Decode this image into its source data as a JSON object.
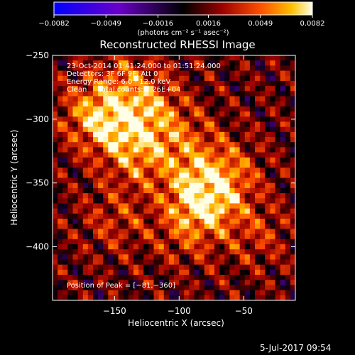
{
  "chart_data": {
    "type": "heatmap",
    "title": "Reconstructed RHESSI Image",
    "xlabel": "Heliocentric X (arcsec)",
    "ylabel": "Heliocentric Y (arcsec)",
    "xlim": [
      -198,
      -10
    ],
    "ylim": [
      -442,
      -250
    ],
    "xticks": [
      -150,
      -100,
      -50
    ],
    "yticks": [
      -250,
      -300,
      -350,
      -400
    ],
    "xtick_labels": [
      "−150",
      "−100",
      "−50"
    ],
    "ytick_labels": [
      "−250",
      "−300",
      "−350",
      "−400"
    ],
    "colorbar": {
      "min": -0.0082,
      "max": 0.0082,
      "ticks": [
        -0.0082,
        -0.0049,
        -0.0016,
        0.0016,
        0.0049,
        0.0082
      ],
      "tick_labels": [
        "−0.0082",
        "−0.0049",
        "−0.0016",
        "0.0016",
        "0.0049",
        "0.0082"
      ],
      "unit_label": "(photons cm⁻² s⁻¹ asec⁻²)"
    },
    "annotations": [
      "23-Oct-2014 01:41:24.000 to 01:51:24.000",
      "Detectors: 3F 6F 9F, Att 0",
      "Energy Range: 6.0 - 12.0 keV",
      "Clean     Total counts: 2.26E+04"
    ],
    "peak_label": "Position of Peak = [−81,−360]",
    "peak": [
      -81,
      -360
    ],
    "sources": [
      {
        "x": -81,
        "y": -360,
        "amp": 1.0
      },
      {
        "x": -150,
        "y": -305,
        "amp": 0.55
      },
      {
        "x": -168,
        "y": -295,
        "amp": 0.45
      },
      {
        "x": -120,
        "y": -295,
        "amp": 0.45
      },
      {
        "x": -130,
        "y": -330,
        "amp": 0.45
      },
      {
        "x": -95,
        "y": -320,
        "amp": 0.35
      },
      {
        "x": -60,
        "y": -340,
        "amp": 0.35
      },
      {
        "x": -140,
        "y": -270,
        "amp": 0.35
      },
      {
        "x": -150,
        "y": -380,
        "amp": 0.3
      },
      {
        "x": -95,
        "y": -390,
        "amp": 0.3
      },
      {
        "x": -40,
        "y": -390,
        "amp": 0.3
      }
    ]
  },
  "footer": {
    "date": "5-Jul-2017 09:54"
  }
}
